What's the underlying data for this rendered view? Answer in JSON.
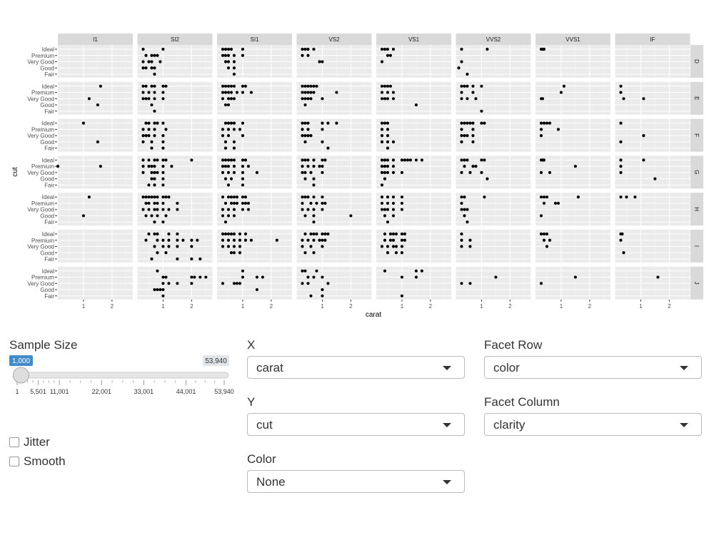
{
  "chart_data": {
    "type": "scatter",
    "x_label": "carat",
    "y_label": "cut",
    "cuts": [
      "Ideal",
      "Premium",
      "Very Good",
      "Good",
      "Fair"
    ],
    "facet_rows": [
      "D",
      "E",
      "F",
      "G",
      "H",
      "I",
      "J"
    ],
    "facet_cols": [
      "I1",
      "SI2",
      "SI1",
      "VS2",
      "VS1",
      "VVS2",
      "VVS1",
      "IF"
    ],
    "xlim": [
      0.1,
      2.73
    ],
    "xticks": [
      1,
      2
    ],
    "grid": true,
    "color": "#000000",
    "panels": [
      [
        [
          [],
          [],
          [],
          [],
          []
        ],
        [
          [
            0.3,
            1.0
          ],
          [
            0.4,
            0.6,
            0.7,
            0.8
          ],
          [
            0.3,
            0.5,
            0.6,
            0.9
          ],
          [
            0.3,
            0.4,
            0.6,
            0.7
          ],
          [
            0.7
          ]
        ],
        [
          [
            0.3,
            0.4,
            0.5,
            0.6,
            1.0
          ],
          [
            0.3,
            0.4,
            0.5,
            0.7,
            1.0
          ],
          [
            0.4,
            0.5,
            0.7
          ],
          [
            0.5,
            0.7
          ],
          [
            0.7
          ]
        ],
        [
          [
            0.3,
            0.4,
            0.5,
            0.7
          ],
          [
            0.3,
            0.5
          ],
          [
            0.9,
            1.0
          ],
          [],
          []
        ],
        [
          [
            0.3,
            0.4,
            0.5,
            0.7
          ],
          [
            0.5,
            0.6
          ],
          [
            0.3
          ],
          [],
          []
        ],
        [
          [
            0.3,
            1.2
          ],
          [],
          [
            0.3
          ],
          [
            0.2
          ],
          [
            0.5
          ]
        ],
        [
          [
            0.3,
            0.35,
            0.4
          ],
          [],
          [],
          [],
          []
        ],
        [
          [],
          [],
          [],
          [],
          []
        ]
      ],
      [
        [
          [
            1.6
          ],
          [],
          [
            1.2
          ],
          [
            1.5
          ],
          []
        ],
        [
          [
            0.3,
            0.4,
            0.6,
            0.7,
            1.0,
            1.1
          ],
          [
            0.3,
            0.5,
            0.7,
            1.0
          ],
          [
            0.3,
            0.4,
            0.5,
            0.7,
            1.0
          ],
          [
            0.6
          ],
          [
            0.7
          ]
        ],
        [
          [
            0.3,
            0.4,
            0.5,
            0.6,
            0.7,
            1.0,
            1.1
          ],
          [
            0.3,
            0.4,
            0.5,
            0.6,
            0.8,
            1.0,
            1.3
          ],
          [
            0.3,
            0.5,
            0.6,
            0.7
          ],
          [
            0.4,
            0.5
          ],
          []
        ],
        [
          [
            0.3,
            0.4,
            0.5,
            0.6,
            0.7,
            0.8
          ],
          [
            0.3,
            0.4,
            0.5,
            0.6,
            0.7,
            1.5
          ],
          [
            0.3,
            0.4,
            0.5,
            0.6,
            1.0
          ],
          [
            0.4
          ],
          []
        ],
        [
          [
            0.3,
            0.4,
            0.5,
            0.6
          ],
          [
            0.3,
            0.5,
            0.7
          ],
          [
            0.3,
            0.4,
            0.5,
            0.7
          ],
          [
            1.5
          ],
          []
        ],
        [
          [
            0.3,
            0.4,
            0.5,
            0.7,
            1.0
          ],
          [
            0.3,
            0.7
          ],
          [
            0.3,
            0.5,
            0.8
          ],
          [],
          [
            1.0
          ]
        ],
        [
          [
            1.1
          ],
          [
            1.0
          ],
          [
            0.3,
            0.35
          ],
          [],
          []
        ],
        [
          [
            0.3
          ],
          [
            0.3
          ],
          [
            0.4,
            1.1
          ],
          [],
          []
        ]
      ],
      [
        [
          [
            1.0
          ],
          [],
          [],
          [
            1.5
          ],
          []
        ],
        [
          [
            0.4,
            0.5,
            0.7,
            0.8,
            1.0
          ],
          [
            0.3,
            0.5,
            0.7,
            1.1
          ],
          [
            0.3,
            0.4,
            0.5,
            0.7,
            1.0
          ],
          [
            0.3,
            0.6,
            1.0
          ],
          [
            0.6,
            1.0
          ]
        ],
        [
          [
            0.4,
            0.5,
            0.6,
            0.7,
            1.0
          ],
          [
            0.3,
            0.5,
            0.7,
            0.9
          ],
          [
            0.3,
            0.5,
            1.0
          ],
          [
            0.4,
            0.7
          ],
          [
            0.4,
            0.7
          ]
        ],
        [
          [
            0.3,
            0.4,
            0.5,
            1.0,
            1.2,
            1.5
          ],
          [
            0.3,
            0.5,
            1.0
          ],
          [
            0.3,
            0.4,
            0.5,
            0.6
          ],
          [
            0.4,
            1.0
          ],
          [
            1.2
          ]
        ],
        [
          [
            0.3,
            0.4,
            0.5
          ],
          [
            0.3,
            0.5
          ],
          [
            0.3,
            0.5
          ],
          [
            0.3,
            0.5,
            0.7
          ],
          [
            0.5
          ]
        ],
        [
          [
            0.3,
            0.4,
            0.5,
            0.6,
            0.7,
            1.0,
            1.1
          ],
          [
            0.3,
            0.7
          ],
          [
            0.3,
            0.4,
            0.5,
            0.7
          ],
          [
            0.3,
            0.7
          ],
          []
        ],
        [
          [
            0.3,
            0.4,
            0.5,
            0.6
          ],
          [
            0.3,
            0.9
          ],
          [
            0.3
          ],
          [],
          []
        ],
        [
          [
            0.3
          ],
          [],
          [
            1.1
          ],
          [
            0.3
          ],
          []
        ]
      ],
      [
        [
          [],
          [
            0.1,
            1.6
          ],
          [],
          [],
          []
        ],
        [
          [
            0.3,
            0.5,
            0.7,
            0.8,
            1.0,
            1.1,
            2.0
          ],
          [
            0.3,
            0.5,
            0.6,
            0.7,
            1.0,
            1.3
          ],
          [
            0.3,
            0.6,
            0.7,
            0.8,
            1.0
          ],
          [
            0.6,
            0.7,
            1.0
          ],
          [
            0.5,
            0.7,
            1.0
          ]
        ],
        [
          [
            0.3,
            0.4,
            0.5,
            0.6,
            0.7,
            1.0,
            1.1
          ],
          [
            0.3,
            0.4,
            0.5,
            0.7,
            1.0,
            1.2
          ],
          [
            0.3,
            0.5,
            0.7,
            1.0,
            1.5
          ],
          [
            0.4,
            0.6,
            1.0
          ],
          [
            0.5,
            1.0
          ]
        ],
        [
          [
            0.3,
            0.4,
            0.5,
            0.7,
            1.0,
            1.1
          ],
          [
            0.3,
            0.5,
            0.7,
            0.9,
            1.0
          ],
          [
            0.3,
            0.4,
            0.6,
            1.0
          ],
          [
            0.4,
            0.7
          ],
          [
            0.7
          ]
        ],
        [
          [
            0.3,
            0.4,
            0.5,
            0.7,
            1.0,
            1.1,
            1.2,
            1.3,
            1.5,
            1.7
          ],
          [
            0.3,
            0.4,
            0.5,
            0.7
          ],
          [
            0.3,
            0.4,
            0.5,
            0.7,
            1.0
          ],
          [
            0.4
          ],
          [
            0.3
          ]
        ],
        [
          [
            0.3,
            0.4,
            0.5,
            1.0,
            1.1
          ],
          [
            0.4,
            0.7,
            0.8
          ],
          [
            0.3,
            0.6,
            1.0
          ],
          [
            1.2
          ],
          []
        ],
        [
          [
            0.3,
            0.35,
            0.4
          ],
          [
            1.5
          ],
          [
            0.3,
            0.6
          ],
          [],
          []
        ],
        [
          [
            0.3,
            1.1
          ],
          [
            0.3
          ],
          [
            0.3
          ],
          [
            1.5
          ],
          []
        ]
      ],
      [
        [
          [
            1.2
          ],
          [],
          [],
          [
            1.0
          ],
          []
        ],
        [
          [
            0.3,
            0.4,
            0.5,
            0.6,
            0.7,
            0.8,
            1.0,
            1.1,
            1.2
          ],
          [
            0.4,
            0.5,
            0.7,
            0.8,
            1.0,
            1.5
          ],
          [
            0.3,
            0.5,
            0.7,
            0.8,
            1.0,
            1.2,
            1.5
          ],
          [
            0.4,
            0.6,
            0.8,
            1.1
          ],
          [
            0.7,
            1.0
          ]
        ],
        [
          [
            0.3,
            0.5,
            0.6,
            0.7,
            0.8,
            1.0,
            1.1
          ],
          [
            0.4,
            0.6,
            0.7,
            0.8,
            1.0,
            1.1,
            1.2
          ],
          [
            0.3,
            0.5,
            0.7,
            1.0,
            1.2
          ],
          [
            0.3,
            0.5,
            0.7
          ],
          [
            0.4
          ]
        ],
        [
          [
            0.3,
            0.4,
            0.5,
            0.7,
            1.0
          ],
          [
            0.3,
            0.6,
            0.8,
            1.0,
            1.1
          ],
          [
            0.3,
            0.5,
            0.7,
            1.0
          ],
          [
            0.4,
            0.7,
            2.0
          ],
          [
            0.7
          ]
        ],
        [
          [
            0.3,
            0.5,
            0.7,
            1.0
          ],
          [
            0.3,
            0.5,
            0.7,
            1.0
          ],
          [
            0.3,
            0.4,
            0.5,
            0.7,
            1.0
          ],
          [
            0.4,
            0.7
          ],
          [
            0.5
          ]
        ],
        [
          [
            0.3,
            0.4,
            1.1
          ],
          [
            0.3
          ],
          [
            0.3,
            0.4,
            0.5
          ],
          [
            0.4
          ],
          [
            0.5
          ]
        ],
        [
          [
            0.3,
            0.4,
            0.5,
            1.6
          ],
          [
            0.4,
            0.8,
            0.9
          ],
          [],
          [
            0.3
          ],
          []
        ],
        [
          [
            0.3,
            0.5,
            0.8
          ],
          [],
          [],
          [],
          []
        ]
      ],
      [
        [
          [],
          [],
          [],
          [],
          []
        ],
        [
          [
            0.5,
            0.7,
            0.8,
            1.2,
            1.5
          ],
          [
            0.4,
            0.8,
            1.0,
            1.2,
            1.5,
            1.7,
            2.0,
            2.2
          ],
          [
            0.7,
            1.0,
            1.2,
            1.5,
            2.0
          ],
          [
            0.8,
            1.1
          ],
          [
            0.6,
            1.5,
            2.0,
            2.3
          ]
        ],
        [
          [
            0.3,
            0.4,
            0.5,
            0.6,
            0.7,
            0.9,
            1.1
          ],
          [
            0.3,
            0.5,
            0.7,
            0.9,
            1.1,
            1.3,
            2.2
          ],
          [
            0.3,
            0.5,
            0.7,
            0.9
          ],
          [
            0.6,
            0.7,
            0.9
          ],
          []
        ],
        [
          [
            0.4,
            0.6,
            0.7,
            0.8,
            1.0,
            1.1,
            1.2
          ],
          [
            0.3,
            0.5,
            0.7,
            0.9,
            1.0,
            1.1
          ],
          [
            0.3,
            0.6,
            1.0
          ],
          [
            0.4,
            0.7
          ],
          []
        ],
        [
          [
            0.4,
            0.6,
            0.7,
            0.8,
            1.0,
            1.1
          ],
          [
            0.4,
            0.6,
            0.7,
            1.0,
            1.1
          ],
          [
            0.3,
            0.5,
            0.7,
            0.8,
            1.0
          ],
          [
            0.5,
            0.8,
            1.0
          ],
          []
        ],
        [
          [
            0.3
          ],
          [
            0.3,
            0.6
          ],
          [
            0.3,
            0.6
          ],
          [],
          []
        ],
        [
          [
            0.3,
            0.4,
            0.5
          ],
          [
            0.4,
            0.6
          ],
          [
            0.5
          ],
          [],
          []
        ],
        [
          [
            0.3,
            0.35
          ],
          [
            0.3
          ],
          [],
          [
            0.4
          ],
          []
        ]
      ],
      [
        [
          [],
          [],
          [],
          [],
          []
        ],
        [
          [
            0.8
          ],
          [
            1.0,
            1.1,
            2.0,
            2.1,
            2.3,
            2.5
          ],
          [
            1.0,
            1.2,
            1.5,
            2.0
          ],
          [
            0.7,
            0.8,
            0.9,
            1.0
          ],
          [
            1.0
          ]
        ],
        [
          [
            1.0
          ],
          [
            1.0,
            1.5,
            1.7
          ],
          [
            0.3,
            0.7,
            0.8,
            0.9
          ],
          [
            1.5
          ],
          []
        ],
        [
          [
            0.3,
            0.4,
            0.8
          ],
          [
            0.5,
            0.7,
            1.0
          ],
          [
            0.3,
            0.5,
            1.2
          ],
          [
            1.0
          ],
          [
            0.6,
            1.0
          ]
        ],
        [
          [
            0.4,
            1.5,
            1.7
          ],
          [
            1.0,
            1.5
          ],
          [],
          [],
          [
            1.0
          ]
        ],
        [
          [],
          [
            1.5
          ],
          [
            0.3,
            0.6
          ],
          [],
          []
        ],
        [
          [],
          [
            1.5
          ],
          [
            0.3
          ],
          [],
          []
        ],
        [
          [],
          [
            1.6
          ],
          [],
          [],
          []
        ]
      ]
    ]
  },
  "controls": {
    "sample_size": {
      "label": "Sample Size",
      "min": 1,
      "value": {
        "value": 1000,
        "label": "1,000"
      },
      "max": {
        "value": 53940,
        "label": "53,940"
      },
      "ticks": [
        1,
        {
          "value": 5501,
          "label": "5,501"
        },
        {
          "value": 11001,
          "label": "11,001"
        },
        {
          "value": 22001,
          "label": "22,001"
        },
        {
          "value": 33001,
          "label": "33,001"
        },
        {
          "value": 44001,
          "label": "44,001"
        },
        {
          "value": 53940,
          "label": "53,940"
        }
      ]
    },
    "checkboxes": [
      "Jitter",
      "Smooth"
    ],
    "selects": [
      {
        "label": "X",
        "value": "carat"
      },
      {
        "label": "Y",
        "value": "cut"
      },
      {
        "label": "Color",
        "value": "None"
      },
      {
        "label": "Facet Row",
        "value": "color"
      },
      {
        "label": "Facet Column",
        "value": "clarity"
      }
    ]
  }
}
